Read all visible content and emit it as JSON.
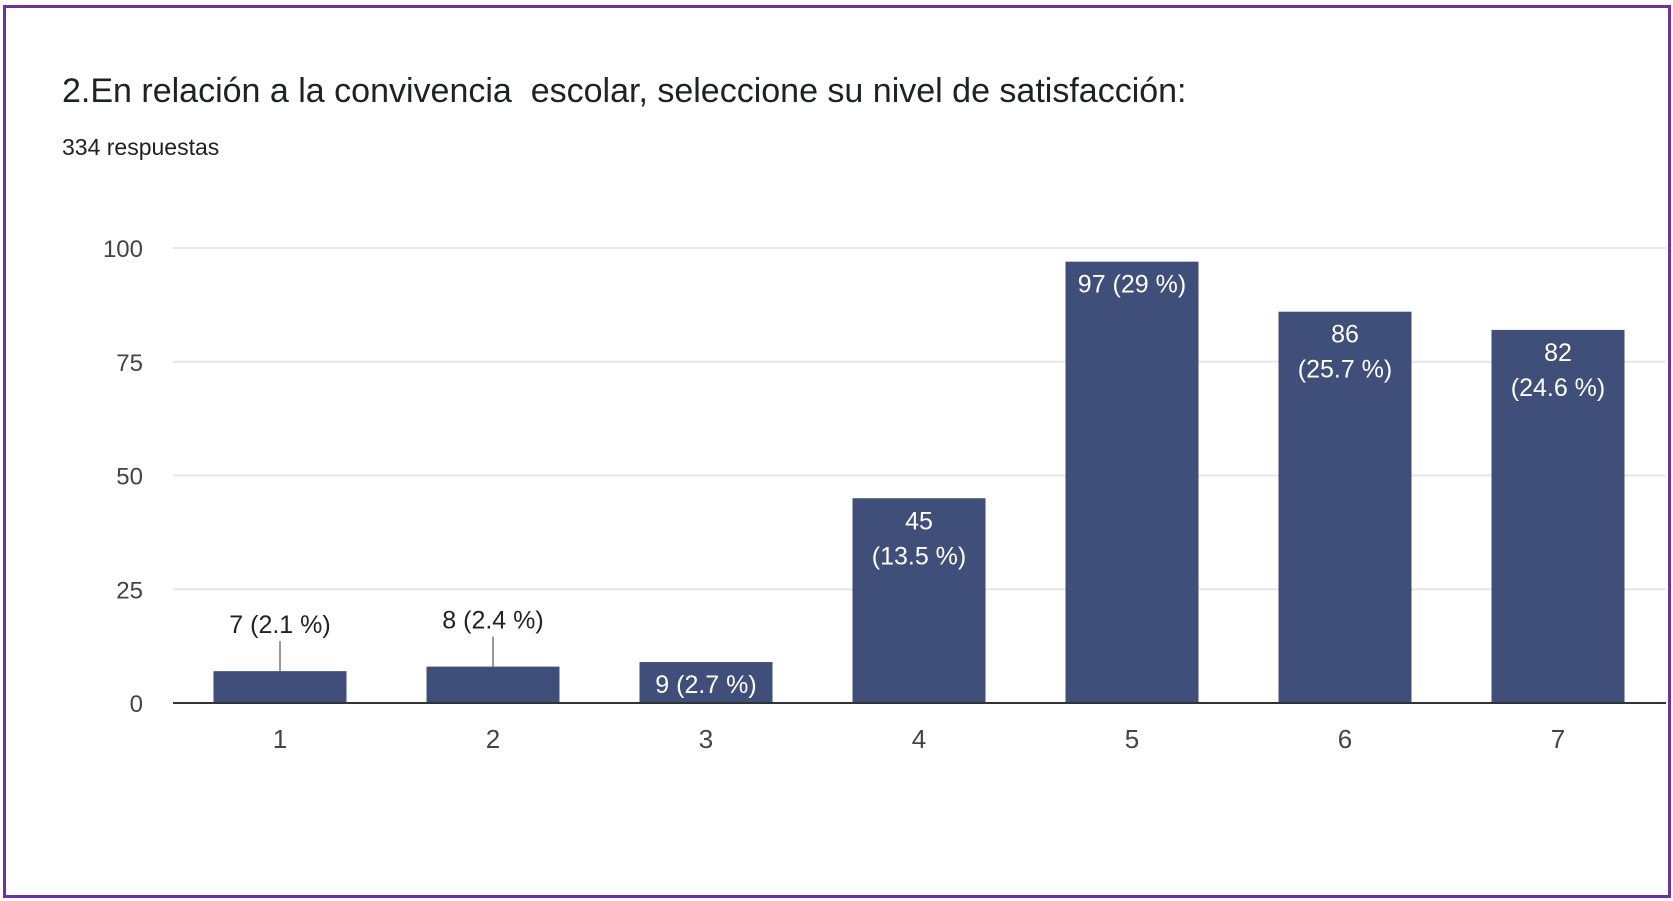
{
  "chart_data": {
    "type": "bar",
    "title": "2.En relación a la convivencia  escolar, seleccione su nivel de satisfacción:",
    "subtitle": "334 respuestas",
    "categories": [
      "1",
      "2",
      "3",
      "4",
      "5",
      "6",
      "7"
    ],
    "values": [
      7,
      8,
      9,
      45,
      97,
      86,
      82
    ],
    "percent_labels": [
      "(2.1 %)",
      "(2.4 %)",
      "(2.7 %)",
      "(13.5 %)",
      "(29 %)",
      "(25.7 %)",
      "(24.6 %)"
    ],
    "ylim": [
      0,
      100
    ],
    "yticks": [
      0,
      25,
      50,
      75,
      100
    ],
    "xlabel": "",
    "ylabel": "",
    "grid": true,
    "bar_color": "#3f4f79",
    "border_color": "#7030a0"
  }
}
